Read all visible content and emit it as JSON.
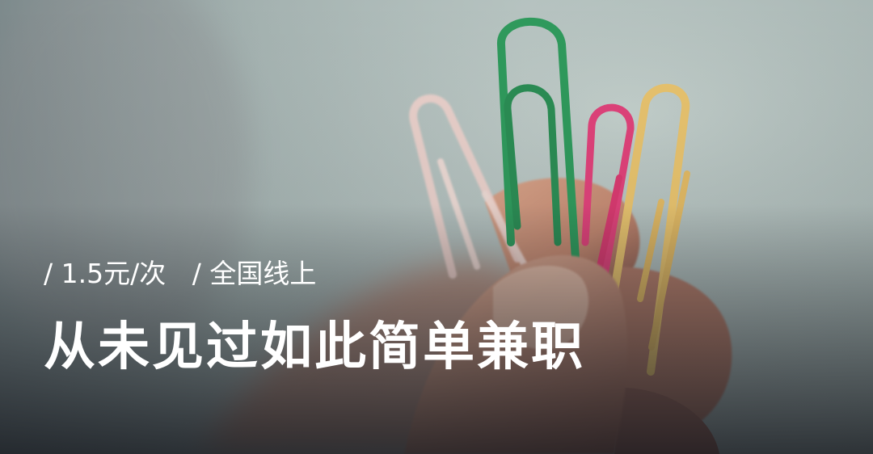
{
  "tags": [
    "/ 1.5元/次",
    "/ 全国线上"
  ],
  "headline": "从未见过如此简单兼职",
  "colors": {
    "text": "#ffffff",
    "clip_pale_pink": "#efd2cc",
    "clip_green": "#2f9a5c",
    "clip_magenta": "#e0427a",
    "clip_yellow": "#e8c36e",
    "skin": "#c98f77"
  }
}
